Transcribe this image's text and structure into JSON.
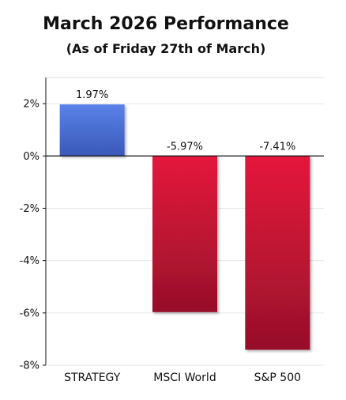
{
  "chart_data": {
    "type": "bar",
    "title": "March 2026 Performance",
    "subtitle": "(As of Friday 27th of March)",
    "categories": [
      "STRATEGY",
      "MSCI World",
      "S&P 500"
    ],
    "values": [
      1.97,
      -5.97,
      -7.41
    ],
    "data_labels": [
      "1.97%",
      "-5.97%",
      "-7.41%"
    ],
    "ylim": [
      -8,
      3
    ],
    "yticks": [
      2,
      0,
      -2,
      -4,
      -6,
      -8
    ],
    "ytick_labels": [
      "2%",
      "0%",
      "-2%",
      "-4%",
      "-6%",
      "-8%"
    ],
    "grid": true,
    "colors": {
      "positive_top": "#5a82e8",
      "positive_bottom": "#3a58b8",
      "negative_top": "#e5173c",
      "negative_bottom": "#96102a",
      "gridline": "#e6e6e6",
      "axis": "#111111"
    }
  }
}
